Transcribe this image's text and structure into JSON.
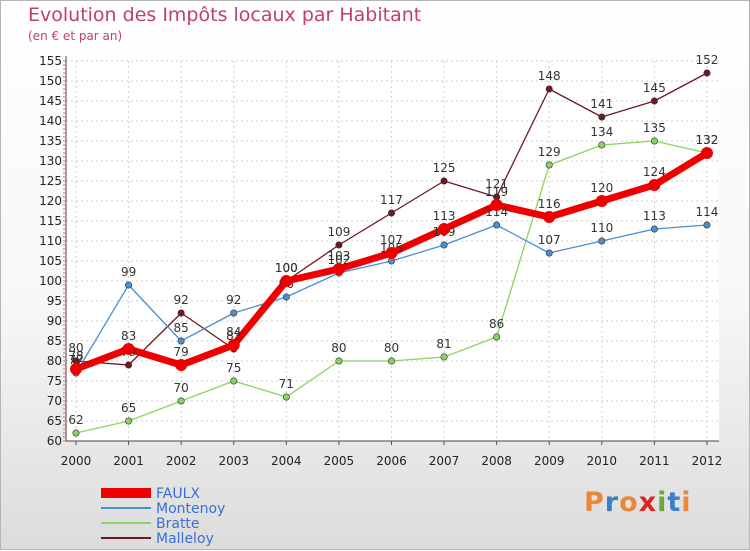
{
  "chart_data": {
    "type": "line",
    "title": "Evolution des Impôts locaux par Habitant",
    "subtitle": "(en € et par an)",
    "x": [
      "2000",
      "2001",
      "2002",
      "2003",
      "2004",
      "2005",
      "2006",
      "2007",
      "2008",
      "2009",
      "2010",
      "2011",
      "2012"
    ],
    "ylim": [
      60,
      155
    ],
    "yticks": [
      60,
      65,
      70,
      75,
      80,
      85,
      90,
      95,
      100,
      105,
      110,
      115,
      120,
      125,
      130,
      135,
      140,
      145,
      150,
      155
    ],
    "series": [
      {
        "name": "Malleloy",
        "color": "#6e1a22",
        "values": [
          80,
          79,
          92,
          83,
          100,
          109,
          117,
          125,
          121,
          148,
          141,
          145,
          152
        ]
      },
      {
        "name": "Bratte",
        "color": "#8ad45e",
        "values": [
          62,
          65,
          70,
          75,
          71,
          80,
          80,
          81,
          86,
          129,
          134,
          135,
          132
        ]
      },
      {
        "name": "Montenoy",
        "color": "#4a90d0",
        "values": [
          77,
          99,
          85,
          92,
          96,
          102,
          105,
          109,
          114,
          107,
          110,
          113,
          114
        ]
      },
      {
        "name": "FAULX",
        "color": "#ee0000",
        "values": [
          78,
          83,
          79,
          84,
          100,
          103,
          107,
          113,
          119,
          116,
          120,
          124,
          132
        ]
      }
    ],
    "legend": [
      "FAULX",
      "Montenoy",
      "Bratte",
      "Malleloy"
    ]
  },
  "logo": {
    "text": "Proxiti",
    "colors": [
      "#e8893a",
      "#3b7fc4",
      "#e8893a",
      "#d6281f",
      "#6aa63a",
      "#3b7fc4",
      "#e8893a"
    ]
  }
}
